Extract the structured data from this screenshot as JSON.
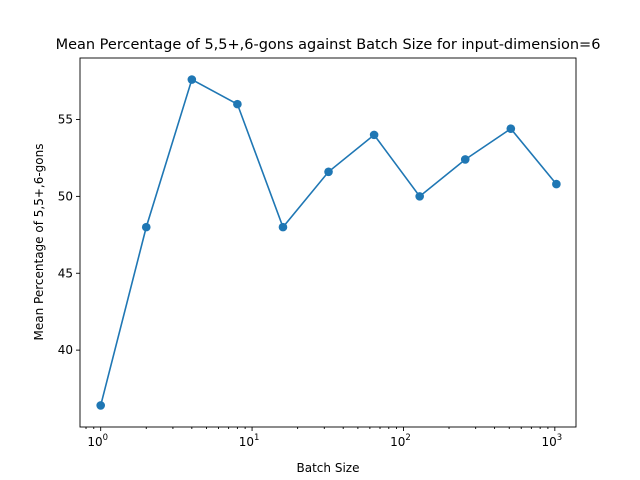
{
  "chart_data": {
    "type": "line",
    "title": "Mean Percentage of 5,5+,6-gons against Batch Size for input-dimension=6",
    "xlabel": "Batch Size",
    "ylabel": "Mean Percentage of 5,5+,6-gons",
    "xscale": "log",
    "xlim": [
      0.73,
      1380
    ],
    "ylim": [
      35.0,
      59.0
    ],
    "grid": false,
    "x_ticks": [
      {
        "base": "10",
        "exp": "0",
        "value": 1
      },
      {
        "base": "10",
        "exp": "1",
        "value": 10
      },
      {
        "base": "10",
        "exp": "2",
        "value": 100
      },
      {
        "base": "10",
        "exp": "3",
        "value": 1000
      }
    ],
    "y_ticks": [
      40,
      45,
      50,
      55
    ],
    "series": [
      {
        "color": "#1f77b4",
        "marker": "circle",
        "x": [
          1,
          2,
          4,
          8,
          16,
          32,
          64,
          128,
          256,
          512,
          1024
        ],
        "y": [
          36.4,
          48.0,
          57.6,
          56.0,
          48.0,
          51.6,
          54.0,
          50.0,
          52.4,
          54.4,
          50.8
        ]
      }
    ]
  }
}
